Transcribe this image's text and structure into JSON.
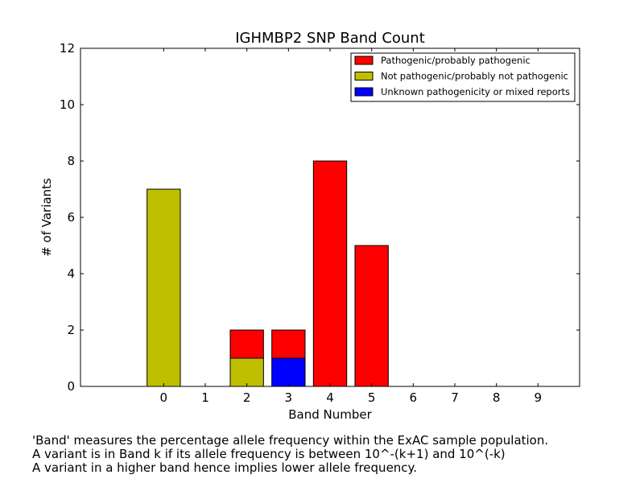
{
  "chart_data": {
    "type": "bar",
    "stacked": true,
    "title": "IGHMBP2 SNP Band Count",
    "xlabel": "Band Number",
    "ylabel": "# of Variants",
    "categories": [
      "0",
      "1",
      "2",
      "3",
      "4",
      "5",
      "6",
      "7",
      "8",
      "9"
    ],
    "xlim": [
      -2,
      10
    ],
    "ylim": [
      0,
      12
    ],
    "yticks": [
      0,
      2,
      4,
      6,
      8,
      10,
      12
    ],
    "grid": false,
    "legend_position": "top-right",
    "series": [
      {
        "name": "Not pathogenic/probably not pathogenic",
        "color": "#bfbf00",
        "values": [
          7,
          0,
          1,
          0,
          0,
          0,
          0,
          0,
          0,
          0
        ]
      },
      {
        "name": "Unknown pathogenicity or mixed reports",
        "color": "#0000ff",
        "values": [
          0,
          0,
          0,
          1,
          0,
          0,
          0,
          0,
          0,
          0
        ]
      },
      {
        "name": "Pathogenic/probably pathogenic",
        "color": "#ff0000",
        "values": [
          0,
          0,
          1,
          1,
          8,
          5,
          0,
          0,
          0,
          0
        ]
      }
    ],
    "legend_order": [
      "Pathogenic/probably pathogenic",
      "Not pathogenic/probably not pathogenic",
      "Unknown pathogenicity or mixed reports"
    ]
  },
  "caption": {
    "line1": "'Band' measures the percentage allele frequency within the ExAC sample population.",
    "line2": "A variant is in Band k if its allele frequency is between 10^-(k+1) and 10^(-k)",
    "line3": "A variant in a higher band hence implies lower allele frequency."
  }
}
